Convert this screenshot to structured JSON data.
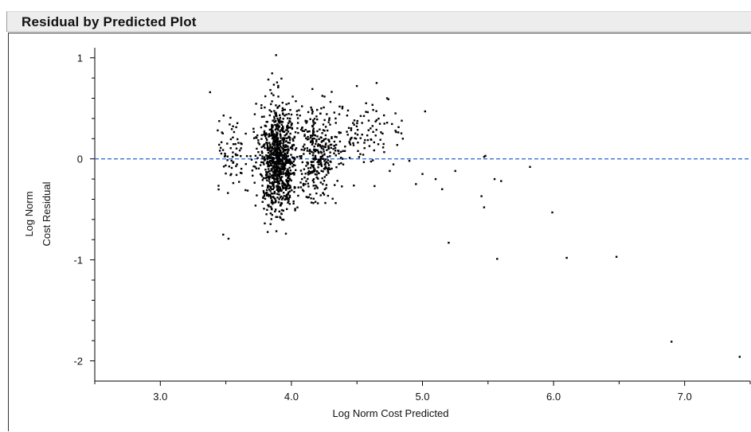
{
  "panel": {
    "title": "Residual by Predicted Plot"
  },
  "colors": {
    "points": "#000000",
    "reference_line": "#3a6fd8",
    "title_bar": "#ededed"
  },
  "chart_data": {
    "type": "scatter",
    "title": "Residual by Predicted Plot",
    "xlabel": "Log Norm Cost Predicted",
    "ylabel_lines": [
      "Log Norm",
      "Cost Residual"
    ],
    "xlim": [
      2.5,
      7.5
    ],
    "ylim": [
      -2.2,
      1.1
    ],
    "xticks": [
      3.0,
      4.0,
      5.0,
      6.0,
      7.0
    ],
    "xtick_labels": [
      "3.0",
      "4.0",
      "5.0",
      "6.0",
      "7.0"
    ],
    "yticks": [
      1,
      0,
      -1,
      -2
    ],
    "ytick_labels": [
      "1",
      "0",
      "-1",
      "-2"
    ],
    "reference_line": {
      "y": 0,
      "style": "dashed"
    },
    "grid": false,
    "legend": "none",
    "clusters": [
      {
        "center_x": 3.9,
        "spread_x": 0.07,
        "center_y": 0.0,
        "spread_y": 0.28,
        "y_min": -0.75,
        "y_max": 1.05,
        "count": 900
      },
      {
        "center_x": 4.2,
        "spread_x": 0.08,
        "center_y": 0.05,
        "spread_y": 0.22,
        "y_min": -0.85,
        "y_max": 0.8,
        "count": 320
      },
      {
        "center_x": 3.55,
        "spread_x": 0.07,
        "center_y": 0.05,
        "spread_y": 0.2,
        "y_min": -0.5,
        "y_max": 0.45,
        "count": 70
      },
      {
        "center_x": 4.55,
        "spread_x": 0.15,
        "center_y": 0.22,
        "spread_y": 0.16,
        "y_min": -0.35,
        "y_max": 0.82,
        "count": 110
      }
    ],
    "points": [
      {
        "x": 3.38,
        "y": 0.66
      },
      {
        "x": 3.48,
        "y": -0.75
      },
      {
        "x": 3.52,
        "y": -0.79
      },
      {
        "x": 4.73,
        "y": 0.6
      },
      {
        "x": 4.74,
        "y": 0.59
      },
      {
        "x": 5.02,
        "y": 0.47
      },
      {
        "x": 4.85,
        "y": 0.2
      },
      {
        "x": 4.9,
        "y": -0.02
      },
      {
        "x": 5.0,
        "y": -0.15
      },
      {
        "x": 5.1,
        "y": -0.2
      },
      {
        "x": 5.15,
        "y": -0.3
      },
      {
        "x": 4.75,
        "y": -0.12
      },
      {
        "x": 4.95,
        "y": -0.25
      },
      {
        "x": 5.2,
        "y": -0.83
      },
      {
        "x": 5.25,
        "y": -0.12
      },
      {
        "x": 5.47,
        "y": 0.02
      },
      {
        "x": 5.48,
        "y": 0.03
      },
      {
        "x": 5.45,
        "y": -0.37
      },
      {
        "x": 5.47,
        "y": -0.48
      },
      {
        "x": 5.55,
        "y": -0.2
      },
      {
        "x": 5.6,
        "y": -0.22
      },
      {
        "x": 5.57,
        "y": -0.99
      },
      {
        "x": 5.82,
        "y": -0.08
      },
      {
        "x": 5.99,
        "y": -0.53
      },
      {
        "x": 6.1,
        "y": -0.98
      },
      {
        "x": 6.48,
        "y": -0.97
      },
      {
        "x": 6.9,
        "y": -1.81
      },
      {
        "x": 7.42,
        "y": -1.96
      }
    ]
  }
}
